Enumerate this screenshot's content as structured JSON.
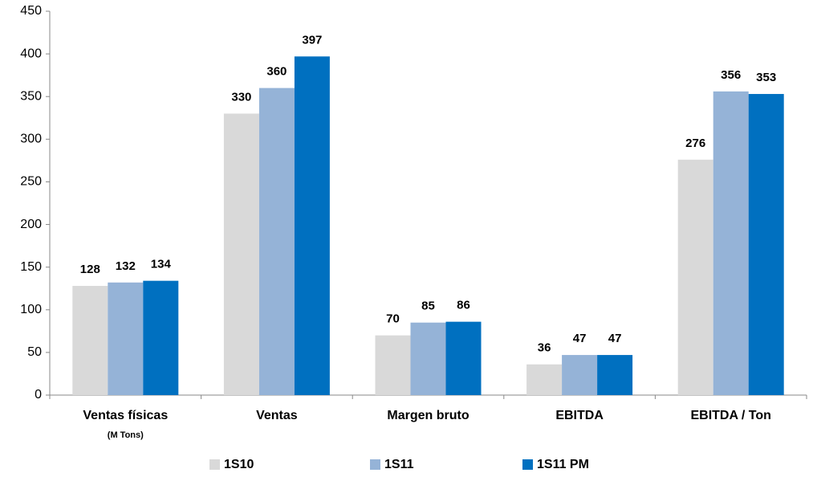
{
  "chart_data": {
    "type": "bar",
    "categories": [
      "Ventas físicas",
      "Ventas",
      "Margen bruto",
      "EBITDA",
      "EBITDA / Ton"
    ],
    "annotations": [
      "(M Tons)"
    ],
    "series": [
      {
        "name": "1S10",
        "color": "#d9d9d9",
        "values": [
          128,
          330,
          70,
          36,
          276
        ]
      },
      {
        "name": "1S11",
        "color": "#95b3d7",
        "values": [
          132,
          360,
          85,
          47,
          356
        ]
      },
      {
        "name": "1S11 PM",
        "color": "#0070c0",
        "values": [
          134,
          397,
          86,
          47,
          353
        ]
      }
    ],
    "ylim": [
      0,
      450
    ],
    "yticks": [
      0,
      50,
      100,
      150,
      200,
      250,
      300,
      350,
      400,
      450
    ],
    "grid": false,
    "legend": "bottom"
  }
}
